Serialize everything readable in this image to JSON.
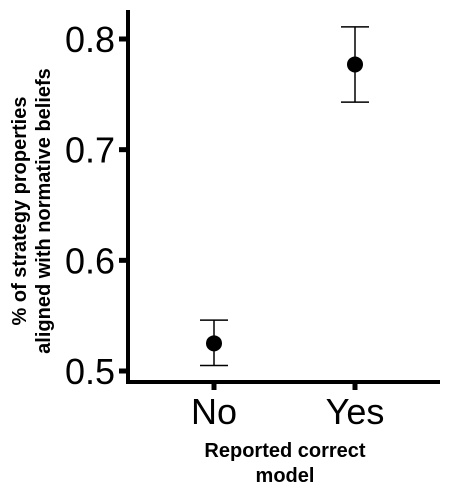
{
  "chart_data": {
    "type": "scatter",
    "title": "",
    "xlabel_lines": [
      "Reported correct",
      "model"
    ],
    "ylabel_lines": [
      "% of strategy properties",
      "aligned with normative beliefs"
    ],
    "categories": [
      "No",
      "Yes"
    ],
    "series": [
      {
        "values": [
          0.525,
          0.777
        ],
        "error_low": [
          0.505,
          0.743
        ],
        "error_high": [
          0.546,
          0.811
        ]
      }
    ],
    "y_ticks": [
      "0.5",
      "0.6",
      "0.7",
      "0.8"
    ],
    "ylim": [
      0.49,
      0.825
    ],
    "grid": false,
    "legend": "none",
    "colors": {
      "point": "#000000",
      "axis": "#000000"
    }
  }
}
